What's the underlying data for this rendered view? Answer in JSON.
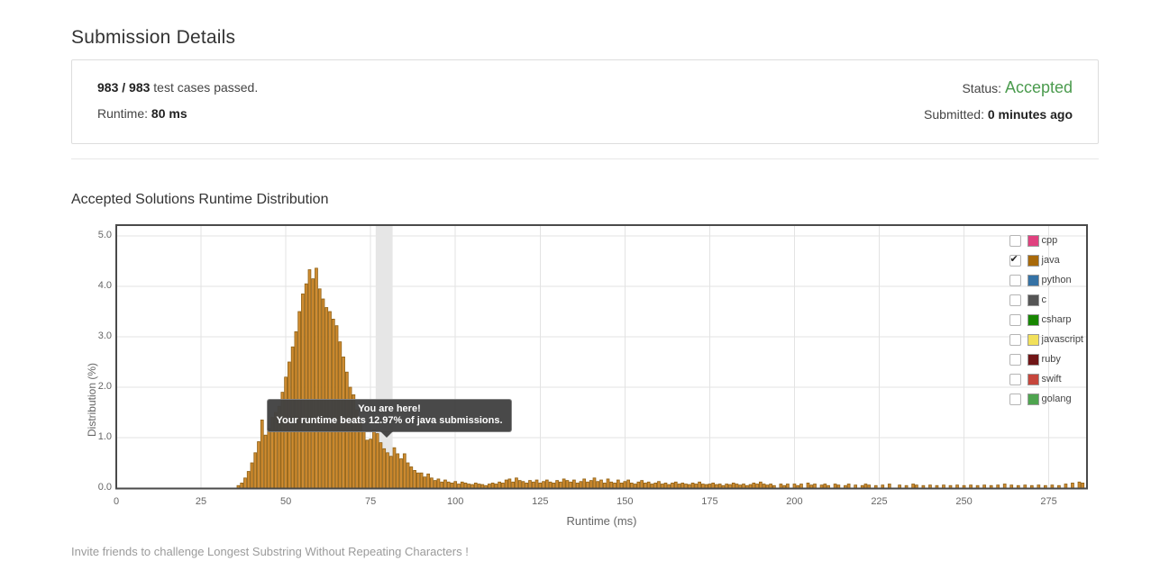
{
  "page": {
    "title": "Submission Details",
    "footer": "Invite friends to challenge Longest Substring Without Repeating Characters !"
  },
  "summary": {
    "tests_passed_bold": "983 / 983",
    "tests_passed_rest": " test cases passed.",
    "runtime_label": "Runtime: ",
    "runtime_value": "80 ms",
    "status_label": "Status: ",
    "status_value": "Accepted",
    "status_color": "#4b9b4e",
    "submitted_label": "Submitted: ",
    "submitted_value": "0 minutes ago"
  },
  "legend": {
    "items": [
      {
        "label": "cpp",
        "color": "#e0417f",
        "checked": false
      },
      {
        "label": "java",
        "color": "#a8690a",
        "checked": true
      },
      {
        "label": "python",
        "color": "#3572a5",
        "checked": false
      },
      {
        "label": "c",
        "color": "#555555",
        "checked": false
      },
      {
        "label": "csharp",
        "color": "#178600",
        "checked": false
      },
      {
        "label": "javascript",
        "color": "#f1e05a",
        "checked": false
      },
      {
        "label": "ruby",
        "color": "#701516",
        "checked": false
      },
      {
        "label": "swift",
        "color": "#c6463c",
        "checked": false
      },
      {
        "label": "golang",
        "color": "#4ea44f",
        "checked": false
      }
    ]
  },
  "chart_data": {
    "type": "bar",
    "title": "Accepted Solutions Runtime Distribution",
    "xlabel": "Runtime (ms)",
    "ylabel": "Distribution (%)",
    "xlim": [
      0,
      286
    ],
    "ylim": [
      0,
      5.2
    ],
    "x_ticks": [
      0,
      25,
      50,
      75,
      100,
      125,
      150,
      175,
      200,
      225,
      250,
      275
    ],
    "y_ticks": [
      "0.0",
      "1.0",
      "2.0",
      "3.0",
      "4.0",
      "5.0"
    ],
    "grid": true,
    "legend_position": "top-right",
    "bar_width_ms": 1,
    "highlight_band_ms": [
      76.5,
      81.5
    ],
    "tooltip": {
      "line1": "You are here!",
      "line2": "Your runtime beats 12.97% of java submissions."
    },
    "colors": {
      "bar_fill": "#cf8c31",
      "bar_stroke": "#8f6014",
      "band": "#e6e6e6",
      "frame": "#4a4a4a",
      "grid": "#e3e3e3"
    },
    "series": [
      {
        "name": "java",
        "points": [
          [
            36,
            0.05
          ],
          [
            37,
            0.1
          ],
          [
            38,
            0.2
          ],
          [
            39,
            0.33
          ],
          [
            40,
            0.5
          ],
          [
            41,
            0.7
          ],
          [
            42,
            0.92
          ],
          [
            43,
            1.35
          ],
          [
            44,
            1.05
          ],
          [
            45,
            1.18
          ],
          [
            46,
            1.4
          ],
          [
            47,
            1.5
          ],
          [
            48,
            1.62
          ],
          [
            49,
            1.9
          ],
          [
            50,
            2.2
          ],
          [
            51,
            2.5
          ],
          [
            52,
            2.8
          ],
          [
            53,
            3.1
          ],
          [
            54,
            3.5
          ],
          [
            55,
            3.85
          ],
          [
            56,
            4.05
          ],
          [
            57,
            4.33
          ],
          [
            58,
            4.15
          ],
          [
            59,
            4.36
          ],
          [
            60,
            3.95
          ],
          [
            61,
            3.75
          ],
          [
            62,
            3.58
          ],
          [
            63,
            3.5
          ],
          [
            64,
            3.35
          ],
          [
            65,
            3.22
          ],
          [
            66,
            2.9
          ],
          [
            67,
            2.6
          ],
          [
            68,
            2.3
          ],
          [
            69,
            2.0
          ],
          [
            70,
            1.85
          ],
          [
            71,
            1.55
          ],
          [
            72,
            1.3
          ],
          [
            73,
            1.12
          ],
          [
            74,
            0.95
          ],
          [
            75,
            0.97
          ],
          [
            76,
            1.15
          ],
          [
            77,
            1.08
          ],
          [
            78,
            0.9
          ],
          [
            79,
            0.78
          ],
          [
            80,
            0.7
          ],
          [
            81,
            0.63
          ],
          [
            82,
            0.8
          ],
          [
            83,
            0.68
          ],
          [
            84,
            0.58
          ],
          [
            85,
            0.68
          ],
          [
            86,
            0.5
          ],
          [
            87,
            0.42
          ],
          [
            88,
            0.35
          ],
          [
            89,
            0.3
          ],
          [
            90,
            0.3
          ],
          [
            91,
            0.22
          ],
          [
            92,
            0.28
          ],
          [
            93,
            0.2
          ],
          [
            94,
            0.15
          ],
          [
            95,
            0.18
          ],
          [
            96,
            0.12
          ],
          [
            97,
            0.16
          ],
          [
            98,
            0.12
          ],
          [
            99,
            0.1
          ],
          [
            100,
            0.13
          ],
          [
            101,
            0.08
          ],
          [
            102,
            0.12
          ],
          [
            103,
            0.1
          ],
          [
            104,
            0.08
          ],
          [
            105,
            0.07
          ],
          [
            106,
            0.1
          ],
          [
            107,
            0.08
          ],
          [
            108,
            0.07
          ],
          [
            109,
            0.05
          ],
          [
            110,
            0.08
          ],
          [
            111,
            0.1
          ],
          [
            112,
            0.08
          ],
          [
            113,
            0.12
          ],
          [
            114,
            0.1
          ],
          [
            115,
            0.16
          ],
          [
            116,
            0.18
          ],
          [
            117,
            0.12
          ],
          [
            118,
            0.2
          ],
          [
            119,
            0.15
          ],
          [
            120,
            0.13
          ],
          [
            121,
            0.1
          ],
          [
            122,
            0.15
          ],
          [
            123,
            0.12
          ],
          [
            124,
            0.16
          ],
          [
            125,
            0.1
          ],
          [
            126,
            0.13
          ],
          [
            127,
            0.16
          ],
          [
            128,
            0.12
          ],
          [
            129,
            0.1
          ],
          [
            130,
            0.15
          ],
          [
            131,
            0.12
          ],
          [
            132,
            0.18
          ],
          [
            133,
            0.15
          ],
          [
            134,
            0.12
          ],
          [
            135,
            0.16
          ],
          [
            136,
            0.1
          ],
          [
            137,
            0.13
          ],
          [
            138,
            0.18
          ],
          [
            139,
            0.12
          ],
          [
            140,
            0.15
          ],
          [
            141,
            0.2
          ],
          [
            142,
            0.13
          ],
          [
            143,
            0.16
          ],
          [
            144,
            0.1
          ],
          [
            145,
            0.18
          ],
          [
            146,
            0.12
          ],
          [
            147,
            0.1
          ],
          [
            148,
            0.16
          ],
          [
            149,
            0.1
          ],
          [
            150,
            0.13
          ],
          [
            151,
            0.16
          ],
          [
            152,
            0.1
          ],
          [
            153,
            0.08
          ],
          [
            154,
            0.12
          ],
          [
            155,
            0.15
          ],
          [
            156,
            0.1
          ],
          [
            157,
            0.12
          ],
          [
            158,
            0.08
          ],
          [
            159,
            0.1
          ],
          [
            160,
            0.13
          ],
          [
            161,
            0.08
          ],
          [
            162,
            0.1
          ],
          [
            163,
            0.07
          ],
          [
            164,
            0.1
          ],
          [
            165,
            0.12
          ],
          [
            166,
            0.08
          ],
          [
            167,
            0.1
          ],
          [
            168,
            0.08
          ],
          [
            169,
            0.07
          ],
          [
            170,
            0.1
          ],
          [
            171,
            0.08
          ],
          [
            172,
            0.12
          ],
          [
            173,
            0.08
          ],
          [
            174,
            0.07
          ],
          [
            175,
            0.08
          ],
          [
            176,
            0.1
          ],
          [
            177,
            0.07
          ],
          [
            178,
            0.08
          ],
          [
            179,
            0.05
          ],
          [
            180,
            0.08
          ],
          [
            181,
            0.07
          ],
          [
            182,
            0.1
          ],
          [
            183,
            0.08
          ],
          [
            184,
            0.06
          ],
          [
            185,
            0.08
          ],
          [
            186,
            0.05
          ],
          [
            187,
            0.07
          ],
          [
            188,
            0.1
          ],
          [
            189,
            0.08
          ],
          [
            190,
            0.12
          ],
          [
            191,
            0.08
          ],
          [
            192,
            0.06
          ],
          [
            193,
            0.08
          ],
          [
            194,
            0.05
          ],
          [
            196,
            0.08
          ],
          [
            197,
            0.05
          ],
          [
            198,
            0.08
          ],
          [
            200,
            0.08
          ],
          [
            201,
            0.05
          ],
          [
            202,
            0.08
          ],
          [
            204,
            0.1
          ],
          [
            205,
            0.06
          ],
          [
            206,
            0.08
          ],
          [
            208,
            0.06
          ],
          [
            209,
            0.08
          ],
          [
            210,
            0.05
          ],
          [
            212,
            0.08
          ],
          [
            213,
            0.06
          ],
          [
            215,
            0.05
          ],
          [
            216,
            0.08
          ],
          [
            218,
            0.06
          ],
          [
            220,
            0.05
          ],
          [
            221,
            0.08
          ],
          [
            222,
            0.06
          ],
          [
            224,
            0.05
          ],
          [
            226,
            0.06
          ],
          [
            228,
            0.08
          ],
          [
            231,
            0.06
          ],
          [
            233,
            0.05
          ],
          [
            235,
            0.08
          ],
          [
            236,
            0.06
          ],
          [
            238,
            0.05
          ],
          [
            240,
            0.06
          ],
          [
            242,
            0.05
          ],
          [
            244,
            0.06
          ],
          [
            246,
            0.05
          ],
          [
            248,
            0.06
          ],
          [
            250,
            0.05
          ],
          [
            252,
            0.06
          ],
          [
            254,
            0.05
          ],
          [
            256,
            0.06
          ],
          [
            258,
            0.05
          ],
          [
            260,
            0.06
          ],
          [
            262,
            0.08
          ],
          [
            264,
            0.06
          ],
          [
            266,
            0.05
          ],
          [
            268,
            0.06
          ],
          [
            270,
            0.05
          ],
          [
            272,
            0.06
          ],
          [
            274,
            0.05
          ],
          [
            276,
            0.06
          ],
          [
            278,
            0.05
          ],
          [
            280,
            0.08
          ],
          [
            282,
            0.1
          ],
          [
            284,
            0.12
          ],
          [
            285,
            0.1
          ]
        ]
      }
    ]
  }
}
